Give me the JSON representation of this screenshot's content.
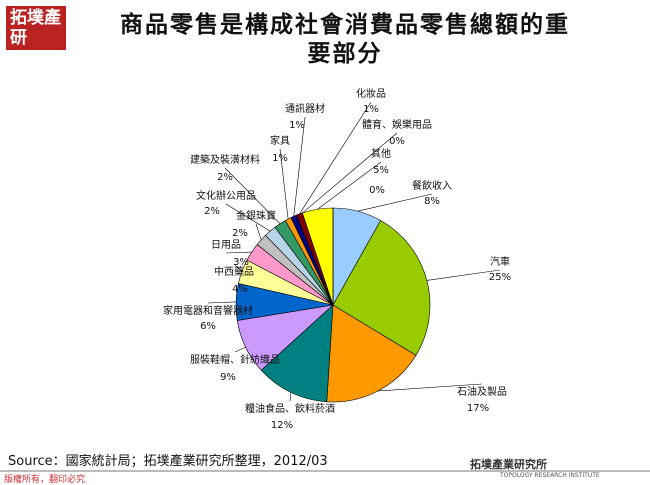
{
  "slide": {
    "logo": "拓墣產研",
    "source": "Source：國家統計局；拓墣產業研究所整理，2012/03",
    "copyright": "版權所有，翻印必究",
    "brand": "拓墣產業研究所",
    "brand_en": "TOPOLOGY RESEARCH INSTITUTE"
  },
  "chart_data": {
    "type": "pie",
    "title": "商品零售是構成社會消費品零售總額的重要部分",
    "categories": [
      "餐飲收入",
      "汽車",
      "石油及製品",
      "糧油食品、飲料菸酒",
      "服裝鞋帽、針紡織品",
      "家用電器和音響器材",
      "中西藥品",
      "日用品",
      "金銀珠寶",
      "文化辦公用品",
      "建築及裝潢材料",
      "家具",
      "通訊器材",
      "化妝品",
      "體育、娛樂用品",
      "其他",
      null
    ],
    "values": [
      8,
      25,
      17,
      12,
      9,
      6,
      4,
      3,
      2,
      2,
      2,
      1,
      1,
      1,
      0,
      5,
      0
    ],
    "value_labels": [
      "8%",
      "25%",
      "17%",
      "12%",
      "9%",
      "6%",
      "4%",
      "3%",
      "2%",
      "2%",
      "2%",
      "1%",
      "1%",
      "1%",
      "0%",
      "5%",
      "0%"
    ],
    "colors": [
      "#99ccff",
      "#99cc00",
      "#ff9900",
      "#008080",
      "#cc99ff",
      "#0066cc",
      "#ffff99",
      "#ff99cc",
      "#c0c0c0",
      "#b8d4e8",
      "#339966",
      "#ff9900",
      "#000080",
      "#800000",
      "#ffcc00",
      "#ffff00",
      "#ff0000"
    ]
  }
}
